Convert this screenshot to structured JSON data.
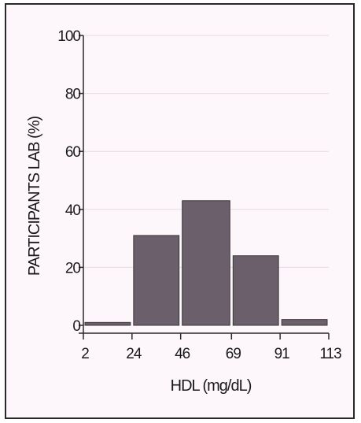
{
  "chart_data": {
    "type": "bar",
    "title": "",
    "xlabel": "HDL (mg/dL)",
    "ylabel": "PARTICIPANTS LAB (%)",
    "x_ticks": [
      "2",
      "24",
      "46",
      "69",
      "91",
      "113"
    ],
    "y_ticks": [
      "0",
      "20",
      "40",
      "60",
      "80",
      "100"
    ],
    "ylim": [
      0,
      100
    ],
    "bins": [
      {
        "from": 2,
        "to": 24,
        "value": 1
      },
      {
        "from": 24,
        "to": 46,
        "value": 31
      },
      {
        "from": 46,
        "to": 69,
        "value": 43
      },
      {
        "from": 69,
        "to": 91,
        "value": 24
      },
      {
        "from": 91,
        "to": 113,
        "value": 2
      }
    ],
    "grid": true,
    "colors": {
      "bar": "#6a5f6a",
      "bar_edge": "#3a3a3a",
      "axis": "#2a2a2a",
      "grid": "#e8d8e4",
      "background": "#fdf7fb"
    }
  }
}
